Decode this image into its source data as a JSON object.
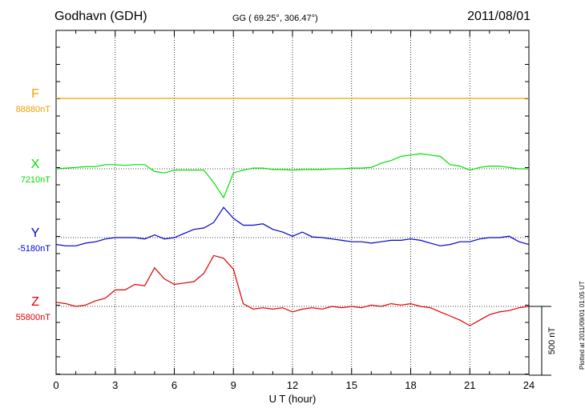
{
  "header": {
    "station": "Godhavn (GDH)",
    "coords": "GG ( 69.25°, 306.47°)",
    "date": "2011/08/01"
  },
  "footer_note": "Plotted at 2011/09/01 01:05 UT",
  "colors": {
    "F": "#f0a000",
    "X": "#00e000",
    "Y": "#0000cc",
    "Z": "#e00000"
  },
  "chart_data": {
    "type": "line",
    "title": "Godhavn (GDH) 2011/08/01",
    "xlabel": "U T (hour)",
    "ylabel": "",
    "xlim": [
      0,
      24
    ],
    "x_ticks": [
      "0",
      "3",
      "6",
      "9",
      "12",
      "15",
      "18",
      "21",
      "24"
    ],
    "scale_bar": {
      "label": "500 nT",
      "value_nT": 500
    },
    "grid": true,
    "x": [
      0,
      0.5,
      1,
      1.5,
      2,
      2.5,
      3,
      3.5,
      4,
      4.5,
      5,
      5.5,
      6,
      6.5,
      7,
      7.5,
      8,
      8.5,
      9,
      9.5,
      10,
      10.5,
      11,
      11.5,
      12,
      12.5,
      13,
      13.5,
      14,
      14.5,
      15,
      15.5,
      16,
      16.5,
      17,
      17.5,
      18,
      18.5,
      19,
      19.5,
      20,
      20.5,
      21,
      21.5,
      22,
      22.5,
      23,
      23.5,
      24
    ],
    "series": [
      {
        "name": "F",
        "label": "F",
        "baseline": "88880nT",
        "values": [
          0,
          0,
          0,
          0,
          0,
          0,
          0,
          0,
          0,
          0,
          0,
          0,
          0,
          0,
          0,
          0,
          0,
          0,
          0,
          0,
          0,
          0,
          0,
          0,
          0,
          0,
          0,
          0,
          0,
          0,
          0,
          0,
          0,
          0,
          0,
          0,
          0,
          0,
          0,
          0,
          0,
          0,
          0,
          0,
          0,
          0,
          0,
          0,
          0
        ]
      },
      {
        "name": "X",
        "label": "X",
        "baseline": "7210nT",
        "values": [
          0,
          5,
          10,
          15,
          15,
          30,
          30,
          25,
          30,
          30,
          -20,
          -30,
          -10,
          -10,
          -10,
          -10,
          -100,
          -210,
          -30,
          -10,
          5,
          5,
          -5,
          -5,
          -10,
          -5,
          -5,
          -5,
          0,
          0,
          5,
          5,
          10,
          40,
          60,
          90,
          100,
          110,
          100,
          90,
          30,
          20,
          -10,
          10,
          20,
          20,
          10,
          0,
          0
        ]
      },
      {
        "name": "Y",
        "label": "Y",
        "baseline": "-5180nT",
        "values": [
          -50,
          -60,
          -60,
          -40,
          -30,
          -10,
          0,
          0,
          0,
          -10,
          20,
          -10,
          0,
          30,
          60,
          70,
          110,
          220,
          140,
          90,
          90,
          100,
          60,
          40,
          10,
          40,
          5,
          0,
          -10,
          -20,
          -30,
          -30,
          -40,
          -30,
          -20,
          -20,
          -10,
          -20,
          -40,
          -60,
          -50,
          -30,
          -30,
          -10,
          0,
          0,
          10,
          -30,
          -50
        ]
      },
      {
        "name": "Z",
        "label": "Z",
        "baseline": "55800nT",
        "values": [
          30,
          20,
          0,
          10,
          40,
          60,
          120,
          120,
          160,
          150,
          280,
          200,
          160,
          170,
          180,
          240,
          370,
          350,
          270,
          20,
          -20,
          -10,
          -20,
          -10,
          -40,
          -20,
          -10,
          -20,
          0,
          -10,
          0,
          -10,
          10,
          0,
          20,
          10,
          20,
          0,
          -10,
          -40,
          -70,
          -100,
          -140,
          -100,
          -60,
          -40,
          -30,
          -10,
          0
        ]
      }
    ]
  }
}
